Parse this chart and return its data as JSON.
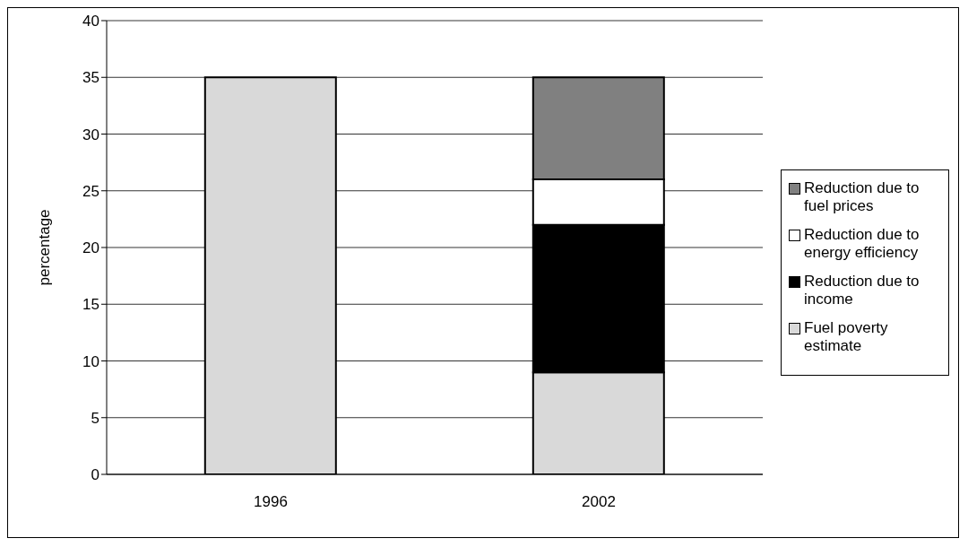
{
  "chart_data": {
    "type": "bar",
    "stacked": true,
    "ylabel": "percentage",
    "categories": [
      "1996",
      "2002"
    ],
    "series": [
      {
        "name": "Fuel poverty estimate",
        "color": "#d9d9d9",
        "values": [
          35,
          9
        ]
      },
      {
        "name": "Reduction due to income",
        "color": "#000000",
        "values": [
          null,
          13
        ]
      },
      {
        "name": "Reduction due to energy efficiency",
        "color": "#ffffff",
        "values": [
          null,
          4
        ]
      },
      {
        "name": "Reduction due to fuel prices",
        "color": "#808080",
        "values": [
          null,
          9
        ]
      }
    ],
    "ylim": [
      0,
      40
    ],
    "yticks": [
      0,
      5,
      10,
      15,
      20,
      25,
      30,
      35,
      40
    ],
    "grid": "y",
    "legend": "right"
  }
}
